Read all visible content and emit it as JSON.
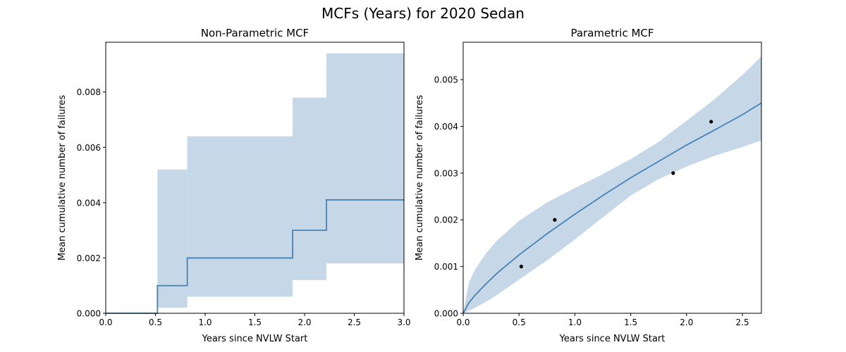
{
  "figure": {
    "title": "MCFs (Years) for 2020 Sedan"
  },
  "colors": {
    "line": "#4682b4",
    "band": "#c6d8e8",
    "points": "#000000",
    "axes": "#000000"
  },
  "chart_data": [
    {
      "type": "line",
      "title": "Non-Parametric MCF",
      "xlabel": "Years since NVLW Start",
      "ylabel": "Mean cumulative number of failures",
      "xlim": [
        0,
        3.0
      ],
      "ylim": [
        0,
        0.0098
      ],
      "xticks": [
        0.0,
        0.5,
        1.0,
        1.5,
        2.0,
        2.5,
        3.0
      ],
      "xtick_labels": [
        "0.0",
        "0.5",
        "1.0",
        "1.5",
        "2.0",
        "2.5",
        "3.0"
      ],
      "yticks": [
        0,
        0.002,
        0.004,
        0.006,
        0.008
      ],
      "ytick_labels": [
        "0.000",
        "0.002",
        "0.004",
        "0.006",
        "0.008"
      ],
      "grid": false,
      "step_x": [
        0.0,
        0.52,
        0.82,
        1.88,
        2.22,
        3.0
      ],
      "mcf": [
        0.0,
        0.001,
        0.002,
        0.003,
        0.0041
      ],
      "ci_lower": [
        0.0,
        0.0002,
        0.0006,
        0.0012,
        0.0018
      ],
      "ci_upper": [
        0.0,
        0.0052,
        0.0064,
        0.0078,
        0.0094
      ]
    },
    {
      "type": "line",
      "title": "Parametric MCF",
      "xlabel": "Years since NVLW Start",
      "ylabel": "Mean cumulative number of failures",
      "xlim": [
        0,
        2.67
      ],
      "ylim": [
        0,
        0.0058
      ],
      "xticks": [
        0.0,
        0.5,
        1.0,
        1.5,
        2.0,
        2.5
      ],
      "xtick_labels": [
        "0.0",
        "0.5",
        "1.0",
        "1.5",
        "2.0",
        "2.5"
      ],
      "yticks": [
        0,
        0.001,
        0.002,
        0.003,
        0.004,
        0.005
      ],
      "ytick_labels": [
        "0.000",
        "0.001",
        "0.002",
        "0.003",
        "0.004",
        "0.005"
      ],
      "grid": false,
      "fit": {
        "x": [
          0.0,
          0.05,
          0.1,
          0.2,
          0.3,
          0.5,
          0.75,
          1.0,
          1.25,
          1.5,
          1.75,
          2.0,
          2.25,
          2.5,
          2.67
        ],
        "y": [
          0.0,
          0.00022,
          0.00037,
          0.00062,
          0.00085,
          0.00125,
          0.0017,
          0.00212,
          0.00252,
          0.0029,
          0.00325,
          0.0036,
          0.00392,
          0.00425,
          0.0045
        ],
        "upper": [
          0.0,
          0.00065,
          0.00091,
          0.00127,
          0.00155,
          0.00198,
          0.00237,
          0.00268,
          0.00298,
          0.0033,
          0.00367,
          0.00412,
          0.00458,
          0.0051,
          0.0055
        ],
        "lower": [
          0.0,
          5e-05,
          0.00011,
          0.00024,
          0.00039,
          0.00072,
          0.00113,
          0.00158,
          0.00205,
          0.00252,
          0.00287,
          0.00314,
          0.00337,
          0.00356,
          0.0037
        ]
      },
      "points": {
        "x": [
          0.52,
          0.82,
          1.88,
          2.22
        ],
        "y": [
          0.001,
          0.002,
          0.003,
          0.0041
        ]
      }
    }
  ]
}
